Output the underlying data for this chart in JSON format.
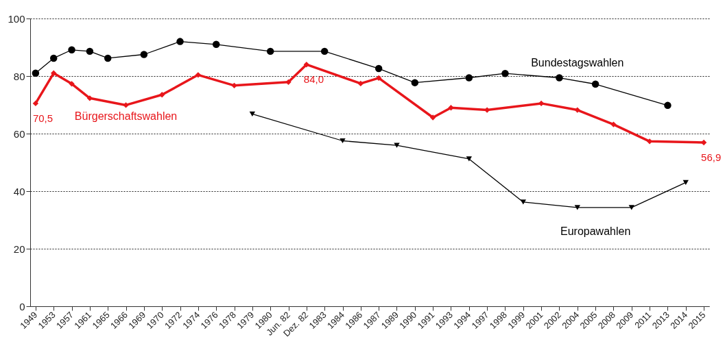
{
  "chart_data": {
    "type": "line",
    "categories": [
      "1949",
      "1953",
      "1957",
      "1961",
      "1965",
      "1966",
      "1969",
      "1970",
      "1972",
      "1974",
      "1976",
      "1978",
      "1979",
      "1980",
      "Jun. 82",
      "Dez. 82",
      "1983",
      "1984",
      "1986",
      "1987",
      "1989",
      "1990",
      "1991",
      "1993",
      "1994",
      "1997",
      "1998",
      "1999",
      "2001",
      "2002",
      "2004",
      "2005",
      "2008",
      "2009",
      "2011",
      "2013",
      "2014",
      "2015"
    ],
    "series": [
      {
        "name": "Bundestagswahlen",
        "color": "#000000",
        "marker": "circle",
        "values": [
          81,
          86.2,
          89.1,
          88.6,
          86.2,
          null,
          87.5,
          null,
          92,
          null,
          91,
          null,
          null,
          88.6,
          null,
          null,
          88.6,
          null,
          null,
          82.6,
          null,
          77.7,
          null,
          null,
          79.4,
          null,
          80.9,
          null,
          null,
          79.4,
          null,
          77.2,
          null,
          null,
          null,
          69.8,
          null,
          null
        ]
      },
      {
        "name": "Bürgerschaftswahlen",
        "color": "#e8161b",
        "marker": "diamond",
        "values": [
          70.5,
          81,
          77.3,
          72.3,
          null,
          69.9,
          null,
          73.5,
          null,
          80.4,
          null,
          76.7,
          null,
          null,
          77.9,
          84.0,
          null,
          null,
          77.4,
          79.3,
          null,
          null,
          65.6,
          69,
          null,
          68.2,
          null,
          null,
          70.5,
          null,
          68.2,
          null,
          63.2,
          null,
          57.3,
          null,
          null,
          56.9
        ],
        "value_labels": [
          "70,5",
          null,
          null,
          null,
          null,
          null,
          null,
          null,
          null,
          null,
          null,
          null,
          null,
          null,
          null,
          "84,0",
          null,
          null,
          null,
          null,
          null,
          null,
          null,
          null,
          null,
          null,
          null,
          null,
          null,
          null,
          null,
          null,
          null,
          null,
          null,
          null,
          null,
          "56,9"
        ]
      },
      {
        "name": "Europawahlen",
        "color": "#000000",
        "marker": "triangle",
        "values": [
          null,
          null,
          null,
          null,
          null,
          null,
          null,
          null,
          null,
          null,
          null,
          null,
          66.8,
          null,
          null,
          null,
          null,
          57.5,
          null,
          null,
          55.9,
          null,
          null,
          null,
          51.2,
          null,
          null,
          36.2,
          null,
          null,
          34.3,
          null,
          null,
          34.3,
          null,
          null,
          43,
          null
        ]
      }
    ],
    "ylim": [
      0,
      100
    ],
    "yticks": [
      0,
      20,
      40,
      60,
      80,
      100
    ],
    "grid": "y"
  }
}
